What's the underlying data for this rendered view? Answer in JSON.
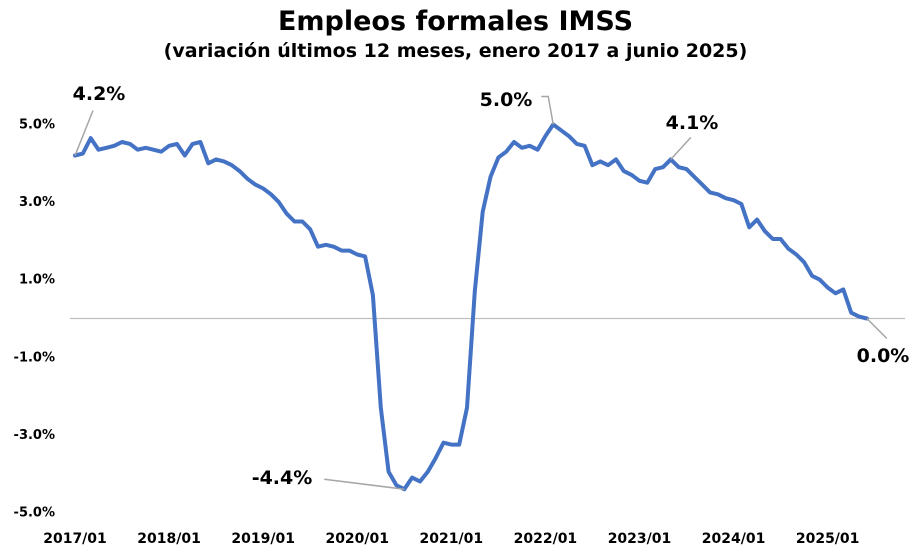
{
  "chart_data": {
    "type": "line",
    "title": "Empleos formales IMSS",
    "subtitle": "(variación últimos 12 meses, enero 2017 a junio 2025)",
    "xlabel": "",
    "ylabel": "",
    "ylim": [
      -5.0,
      6.0
    ],
    "y_ticks": [
      "5.0%",
      "3.0%",
      "1.0%",
      "-1.0%",
      "-3.0%",
      "-5.0%"
    ],
    "x_ticks": [
      "2017/01",
      "2018/01",
      "2019/01",
      "2020/01",
      "2021/01",
      "2022/01",
      "2023/01",
      "2024/01",
      "2025/01"
    ],
    "zero_line": true,
    "color": "#4472C4",
    "x": [
      "2017/01",
      "2017/02",
      "2017/03",
      "2017/04",
      "2017/05",
      "2017/06",
      "2017/07",
      "2017/08",
      "2017/09",
      "2017/10",
      "2017/11",
      "2017/12",
      "2018/01",
      "2018/02",
      "2018/03",
      "2018/04",
      "2018/05",
      "2018/06",
      "2018/07",
      "2018/08",
      "2018/09",
      "2018/10",
      "2018/11",
      "2018/12",
      "2019/01",
      "2019/02",
      "2019/03",
      "2019/04",
      "2019/05",
      "2019/06",
      "2019/07",
      "2019/08",
      "2019/09",
      "2019/10",
      "2019/11",
      "2019/12",
      "2020/01",
      "2020/02",
      "2020/03",
      "2020/04",
      "2020/05",
      "2020/06",
      "2020/07",
      "2020/08",
      "2020/09",
      "2020/10",
      "2020/11",
      "2020/12",
      "2021/01",
      "2021/02",
      "2021/03",
      "2021/04",
      "2021/05",
      "2021/06",
      "2021/07",
      "2021/08",
      "2021/09",
      "2021/10",
      "2021/11",
      "2021/12",
      "2022/01",
      "2022/02",
      "2022/03",
      "2022/04",
      "2022/05",
      "2022/06",
      "2022/07",
      "2022/08",
      "2022/09",
      "2022/10",
      "2022/11",
      "2022/12",
      "2023/01",
      "2023/02",
      "2023/03",
      "2023/04",
      "2023/05",
      "2023/06",
      "2023/07",
      "2023/08",
      "2023/09",
      "2023/10",
      "2023/11",
      "2023/12",
      "2024/01",
      "2024/02",
      "2024/03",
      "2024/04",
      "2024/05",
      "2024/06",
      "2024/07",
      "2024/08",
      "2024/09",
      "2024/10",
      "2024/11",
      "2024/12",
      "2025/01",
      "2025/02",
      "2025/03",
      "2025/04",
      "2025/05",
      "2025/06"
    ],
    "values": [
      4.2,
      4.25,
      4.65,
      4.35,
      4.4,
      4.45,
      4.55,
      4.5,
      4.35,
      4.4,
      4.35,
      4.3,
      4.45,
      4.5,
      4.2,
      4.5,
      4.55,
      4.0,
      4.1,
      4.05,
      3.95,
      3.8,
      3.6,
      3.45,
      3.35,
      3.2,
      3.0,
      2.7,
      2.5,
      2.5,
      2.3,
      1.85,
      1.9,
      1.85,
      1.75,
      1.75,
      1.65,
      1.6,
      0.6,
      -2.3,
      -3.95,
      -4.3,
      -4.4,
      -4.1,
      -4.2,
      -3.95,
      -3.6,
      -3.2,
      -3.25,
      -3.25,
      -2.3,
      0.7,
      2.75,
      3.65,
      4.15,
      4.3,
      4.55,
      4.4,
      4.45,
      4.35,
      4.7,
      5.0,
      4.85,
      4.7,
      4.5,
      4.45,
      3.95,
      4.05,
      3.95,
      4.1,
      3.8,
      3.7,
      3.55,
      3.5,
      3.85,
      3.9,
      4.1,
      3.9,
      3.85,
      3.65,
      3.45,
      3.25,
      3.2,
      3.1,
      3.05,
      2.95,
      2.35,
      2.55,
      2.25,
      2.05,
      2.05,
      1.8,
      1.65,
      1.45,
      1.1,
      1.0,
      0.8,
      0.65,
      0.75,
      0.15,
      0.05,
      0.0
    ],
    "annotations": [
      {
        "label": "4.2%",
        "index": 0
      },
      {
        "label": "-4.4%",
        "index": 42
      },
      {
        "label": "5.0%",
        "index": 61
      },
      {
        "label": "4.1%",
        "index": 76
      },
      {
        "label": "0.0%",
        "index": 101
      }
    ]
  }
}
